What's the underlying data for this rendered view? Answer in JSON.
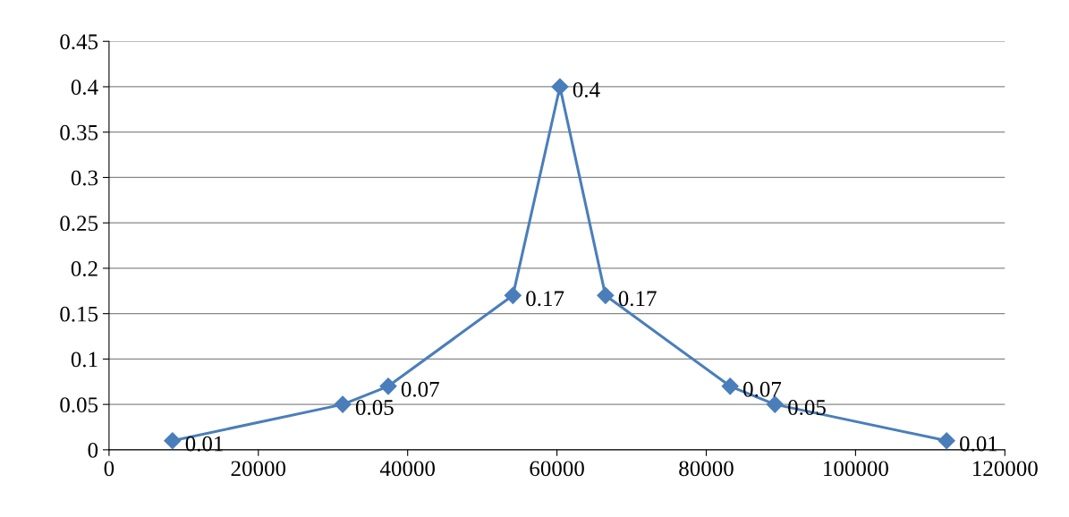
{
  "chart_data": {
    "type": "line",
    "x": [
      8500,
      31300,
      37400,
      54100,
      60400,
      66500,
      83200,
      89200,
      112200
    ],
    "series": [
      {
        "color": "#4a7ebb",
        "values": [
          0.01,
          0.05,
          0.07,
          0.17,
          0.4,
          0.17,
          0.07,
          0.05,
          0.01
        ]
      }
    ],
    "xlim": [
      0,
      120000
    ],
    "xticks": [
      0,
      20000,
      40000,
      60000,
      80000,
      100000,
      120000
    ],
    "ylim": [
      0,
      0.45
    ],
    "yticks": [
      0,
      0.05,
      0.1,
      0.15,
      0.2,
      0.25,
      0.3,
      0.35,
      0.4,
      0.45
    ],
    "grid": "y",
    "marker": "diamond",
    "line_style": "solid",
    "data_labels": true,
    "legend": false
  }
}
